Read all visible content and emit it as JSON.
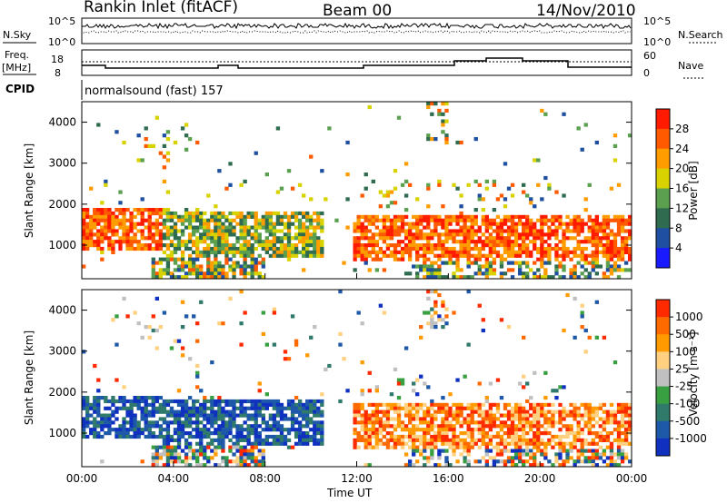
{
  "header": {
    "title": "Rankin Inlet (fitACF)",
    "beam": "Beam 00",
    "date": "14/Nov/2010"
  },
  "panels": {
    "nsky": {
      "left_label": "N.Sky",
      "left_ticks": [
        "10^5",
        "10^0"
      ],
      "right_ticks": [
        "10^5",
        "10^0"
      ],
      "right_label": "N.Search"
    },
    "freq": {
      "left_label_1": "Freq.",
      "left_label_2": "[MHz]",
      "left_ticks": [
        "18",
        "8"
      ],
      "right_ticks": [
        "60",
        "0"
      ],
      "right_label": "Nave"
    },
    "cpid": {
      "label": "CPID",
      "value": "normalsound (fast) 157"
    }
  },
  "colors": {
    "power": [
      "#1a1aff",
      "#1f4fa0",
      "#2e6b4f",
      "#5aa04e",
      "#d8d200",
      "#ff9c00",
      "#ff5a00",
      "#ff1a00"
    ],
    "velocity": [
      "#1030c0",
      "#1e58a8",
      "#2f7a6a",
      "#38a040",
      "#c0c0c0",
      "#ffd080",
      "#ff9a00",
      "#ff6a00",
      "#ff2a00"
    ]
  },
  "chart_data": [
    {
      "type": "heatmap",
      "title": "Power",
      "ylabel": "Slant Range [km]",
      "xlabel": "Time UT",
      "x_ticks": [
        "00:00",
        "04:00",
        "08:00",
        "12:00",
        "16:00",
        "20:00",
        "00:00"
      ],
      "y_ticks": [
        1000,
        2000,
        3000,
        4000
      ],
      "ylim": [
        180,
        4500
      ],
      "colorbar_label": "Power [dB]",
      "colorbar_ticks": [
        4,
        8,
        12,
        16,
        20,
        24,
        28
      ]
    },
    {
      "type": "heatmap",
      "title": "Velocity",
      "ylabel": "Slant Range [km]",
      "xlabel": "Time UT",
      "x_ticks": [
        "00:00",
        "04:00",
        "08:00",
        "12:00",
        "16:00",
        "20:00",
        "00:00"
      ],
      "y_ticks": [
        1000,
        2000,
        3000,
        4000
      ],
      "ylim": [
        180,
        4500
      ],
      "colorbar_label": "Velocity [m s⁻¹]",
      "colorbar_ticks": [
        "1000",
        "500",
        "100",
        "25",
        "-25",
        "-100",
        "-500",
        "-1000"
      ]
    }
  ]
}
